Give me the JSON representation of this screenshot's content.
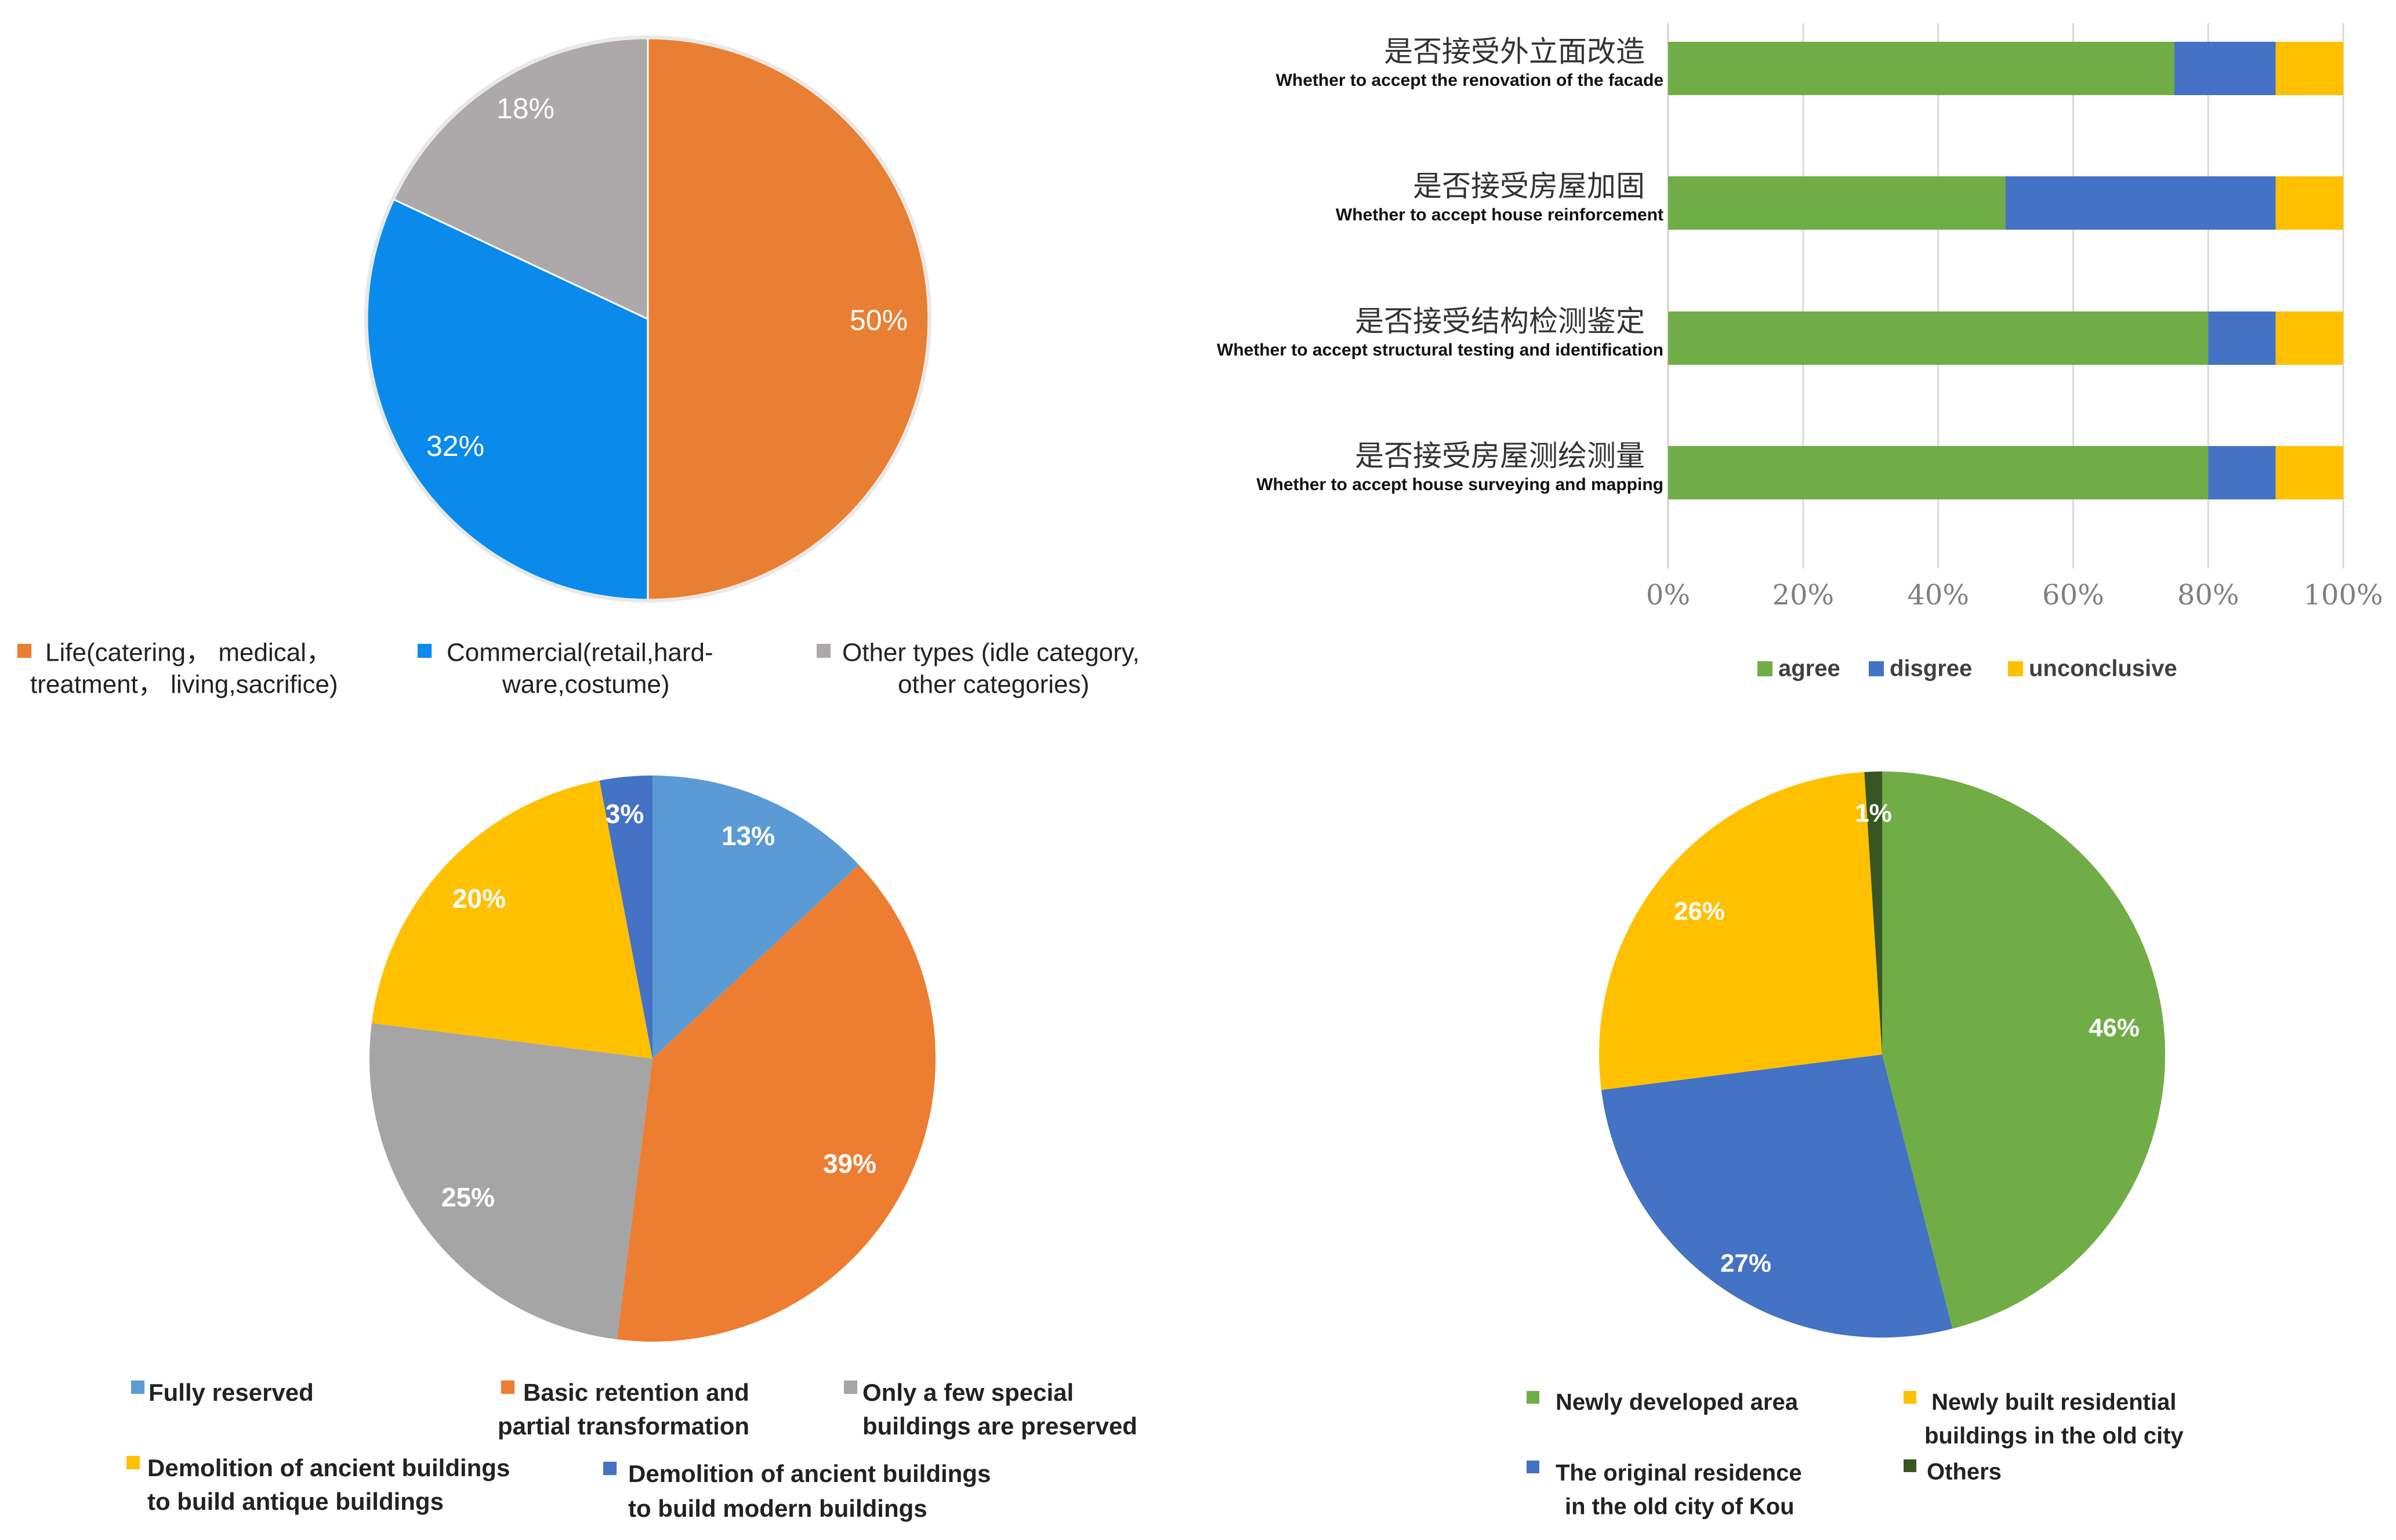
{
  "chart_data": [
    {
      "type": "pie",
      "id": "pie1",
      "slices": [
        {
          "label_lines": [
            "Life(catering， medical，",
            "treatment， living,sacrifice)"
          ],
          "value": 50,
          "text": "50%",
          "color": "#E97F33"
        },
        {
          "label_lines": [
            "Commercial(retail,hard-",
            "ware,costume)"
          ],
          "value": 32,
          "text": "32%",
          "color": "#0A8BEB"
        },
        {
          "label_lines": [
            "Other types (idle category,",
            "other categories)"
          ],
          "value": 18,
          "text": "18%",
          "color": "#ADA9AA"
        }
      ]
    },
    {
      "type": "bar",
      "orientation": "horizontal",
      "stacked": true,
      "id": "stacked1",
      "categories": [
        {
          "cn": "是否接受外立面改造",
          "en": "Whether to accept the renovation of the facade"
        },
        {
          "cn": "是否接受房屋加固",
          "en": "Whether to accept house reinforcement"
        },
        {
          "cn": "是否接受结构检测鉴定",
          "en": "Whether to accept structural testing and identification"
        },
        {
          "cn": "是否接受房屋测绘测量",
          "en": "Whether to accept house surveying and mapping"
        }
      ],
      "series": [
        {
          "name": "agree",
          "color": "#70AD47",
          "values": [
            75,
            50,
            80,
            80
          ]
        },
        {
          "name": "disgree",
          "color": "#4472C4",
          "values": [
            15,
            40,
            10,
            10
          ]
        },
        {
          "name": "unconclusive",
          "color": "#FFC000",
          "values": [
            10,
            10,
            10,
            10
          ]
        }
      ],
      "xlim": [
        0,
        100
      ],
      "ticks": [
        "0%",
        "20%",
        "40%",
        "60%",
        "80%",
        "100%"
      ],
      "grid": true,
      "legend_position": "bottom"
    },
    {
      "type": "pie",
      "id": "pie2",
      "slices": [
        {
          "label_lines": [
            "Fully reserved"
          ],
          "value": 13,
          "text": "13%",
          "color": "#5B9BD5"
        },
        {
          "label_lines": [
            "Basic retention and",
            "partial transformation"
          ],
          "value": 39,
          "text": "39%",
          "color": "#ED7D31"
        },
        {
          "label_lines": [
            "Only a few special",
            "buildings are preserved"
          ],
          "value": 25,
          "text": "25%",
          "color": "#A5A5A5"
        },
        {
          "label_lines": [
            "Demolition of ancient buildings",
            "to build antique buildings"
          ],
          "value": 20,
          "text": "20%",
          "color": "#FFC000"
        },
        {
          "label_lines": [
            "Demolition of ancient buildings",
            "to build modern buildings"
          ],
          "value": 3,
          "text": "3%",
          "color": "#4472C4"
        }
      ]
    },
    {
      "type": "pie",
      "id": "pie3",
      "slices": [
        {
          "label_lines": [
            "Newly developed area"
          ],
          "value": 46,
          "text": "46%",
          "color": "#70AD47"
        },
        {
          "label_lines": [
            "The original residence",
            "in the old city of Kou"
          ],
          "value": 27,
          "text": "27%",
          "color": "#4472C4"
        },
        {
          "label_lines": [
            "Newly built residential",
            "buildings in the old city"
          ],
          "value": 26,
          "text": "26%",
          "color": "#FFC000"
        },
        {
          "label_lines": [
            "Others"
          ],
          "value": 1,
          "text": "1%",
          "color": "#375623"
        }
      ]
    }
  ]
}
